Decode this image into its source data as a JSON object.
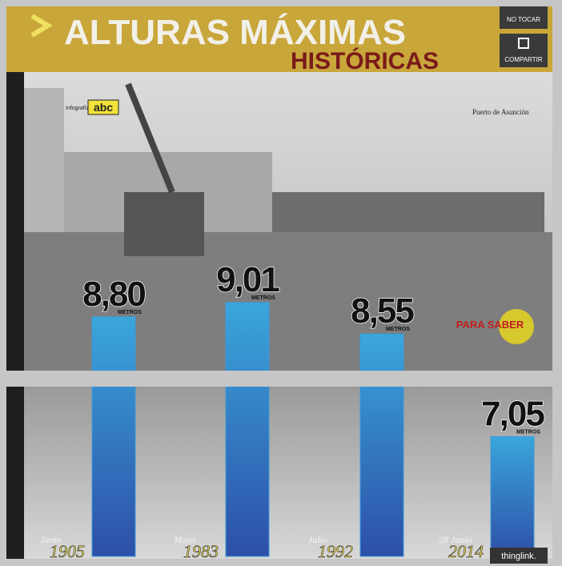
{
  "chart_data": {
    "type": "bar",
    "title": "ALTURAS MÁXIMAS",
    "subtitle": "HISTÓRICAS",
    "categories": [
      "1905",
      "1983",
      "1992",
      "2014"
    ],
    "category_notes": [
      "Junio",
      "Mayo",
      "Julio",
      "28 Junio"
    ],
    "values": [
      8.8,
      9.01,
      8.55,
      7.05
    ],
    "value_labels": [
      "8,80",
      "9,01",
      "8,55",
      "7,05"
    ],
    "unit": "METROS",
    "color": "#3a9ad6",
    "ylim": [
      5.3,
      9.3
    ]
  },
  "ui": {
    "buttons": [
      "NO TOCAR",
      "COMPARTIR"
    ],
    "credit": "Infografía",
    "logo": "abc",
    "photo_caption": "Puerto de Asunción",
    "more": "PARA SABER",
    "watermark": "thinglink."
  }
}
